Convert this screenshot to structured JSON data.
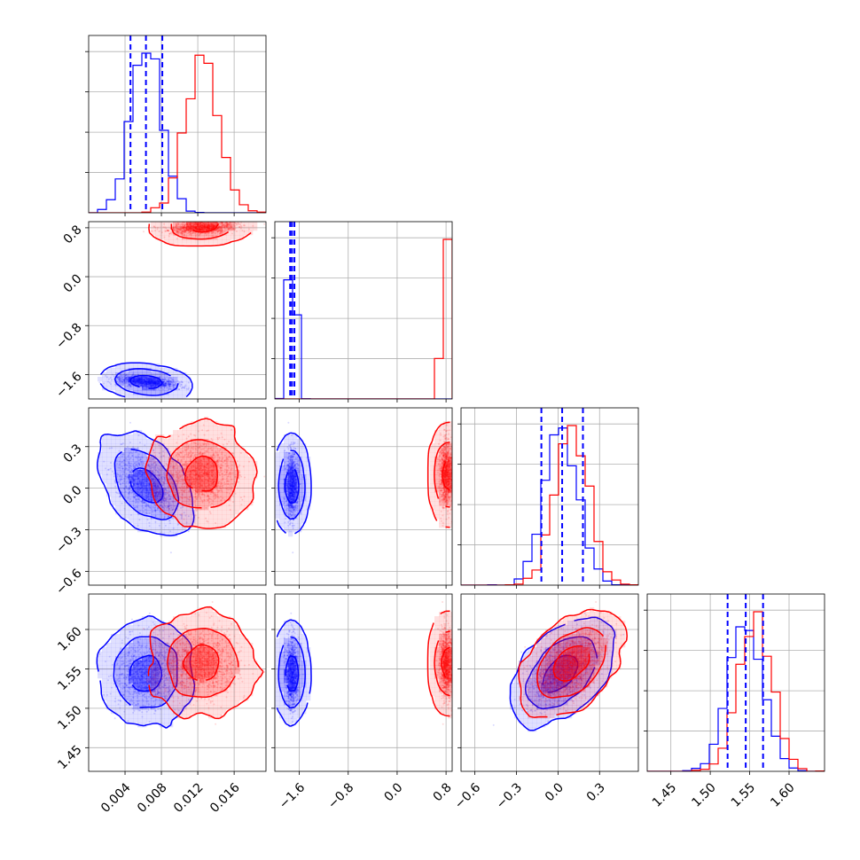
{
  "colors": {
    "model_a": "#0000ff",
    "model_b": "#ff0000",
    "grid": "#b0b0b0"
  },
  "chart_data": {
    "type": "scatter",
    "kind": "corner-plot",
    "parameters": [
      "",
      "",
      "",
      ""
    ],
    "grid": true,
    "series": [
      {
        "color": "#0000ff",
        "mean": [
          0.0063,
          -1.72,
          0.03,
          1.545
        ],
        "sd": [
          0.0017,
          0.05,
          0.125,
          0.022
        ],
        "corr": [
          [
            1,
            -0.45,
            -0.5,
            0.0
          ],
          [
            -0.45,
            1,
            0.0,
            0.0
          ],
          [
            -0.5,
            0.0,
            1,
            0.55
          ],
          [
            0.0,
            0.0,
            0.55,
            1
          ]
        ],
        "quantiles": [
          [
            0.0046,
            0.0063,
            0.0081
          ],
          [
            -1.75,
            -1.72,
            -1.68
          ],
          [
            -0.12,
            0.03,
            0.18
          ],
          [
            1.522,
            1.545,
            1.567
          ]
        ]
      },
      {
        "color": "#ff0000",
        "mean": [
          0.0125,
          0.8,
          0.1,
          1.557
        ],
        "sd": [
          0.0018,
          0.05,
          0.12,
          0.022
        ],
        "corr": [
          [
            1,
            0.25,
            0.0,
            0.0
          ],
          [
            0.25,
            1,
            0.0,
            0.0
          ],
          [
            0.0,
            0.0,
            1,
            0.5
          ],
          [
            0.0,
            0.0,
            0.5,
            1
          ]
        ]
      }
    ],
    "axes": [
      {
        "range": [
          0.0,
          0.0195
        ],
        "ticks": [
          0.004,
          0.008,
          0.012,
          0.016
        ],
        "tick_labels": [
          "0.004",
          "0.008",
          "0.012",
          "0.016"
        ]
      },
      {
        "range": [
          -2.0,
          0.9
        ],
        "ticks": [
          -1.6,
          -0.8,
          0.0,
          0.8
        ],
        "tick_labels": [
          "−1.6",
          "−0.8",
          "0.0",
          "0.8"
        ]
      },
      {
        "range": [
          -0.7,
          0.58
        ],
        "ticks": [
          -0.6,
          -0.3,
          0.0,
          0.3
        ],
        "tick_labels": [
          "−0.6",
          "−0.3",
          "0.0",
          "0.3"
        ]
      },
      {
        "range": [
          1.42,
          1.645
        ],
        "ticks": [
          1.45,
          1.5,
          1.55,
          1.6
        ],
        "tick_labels": [
          "1.45",
          "1.50",
          "1.55",
          "1.60"
        ]
      }
    ],
    "histogram_bins": 20,
    "contour_levels": [
      0.39,
      0.86,
      0.99
    ]
  }
}
